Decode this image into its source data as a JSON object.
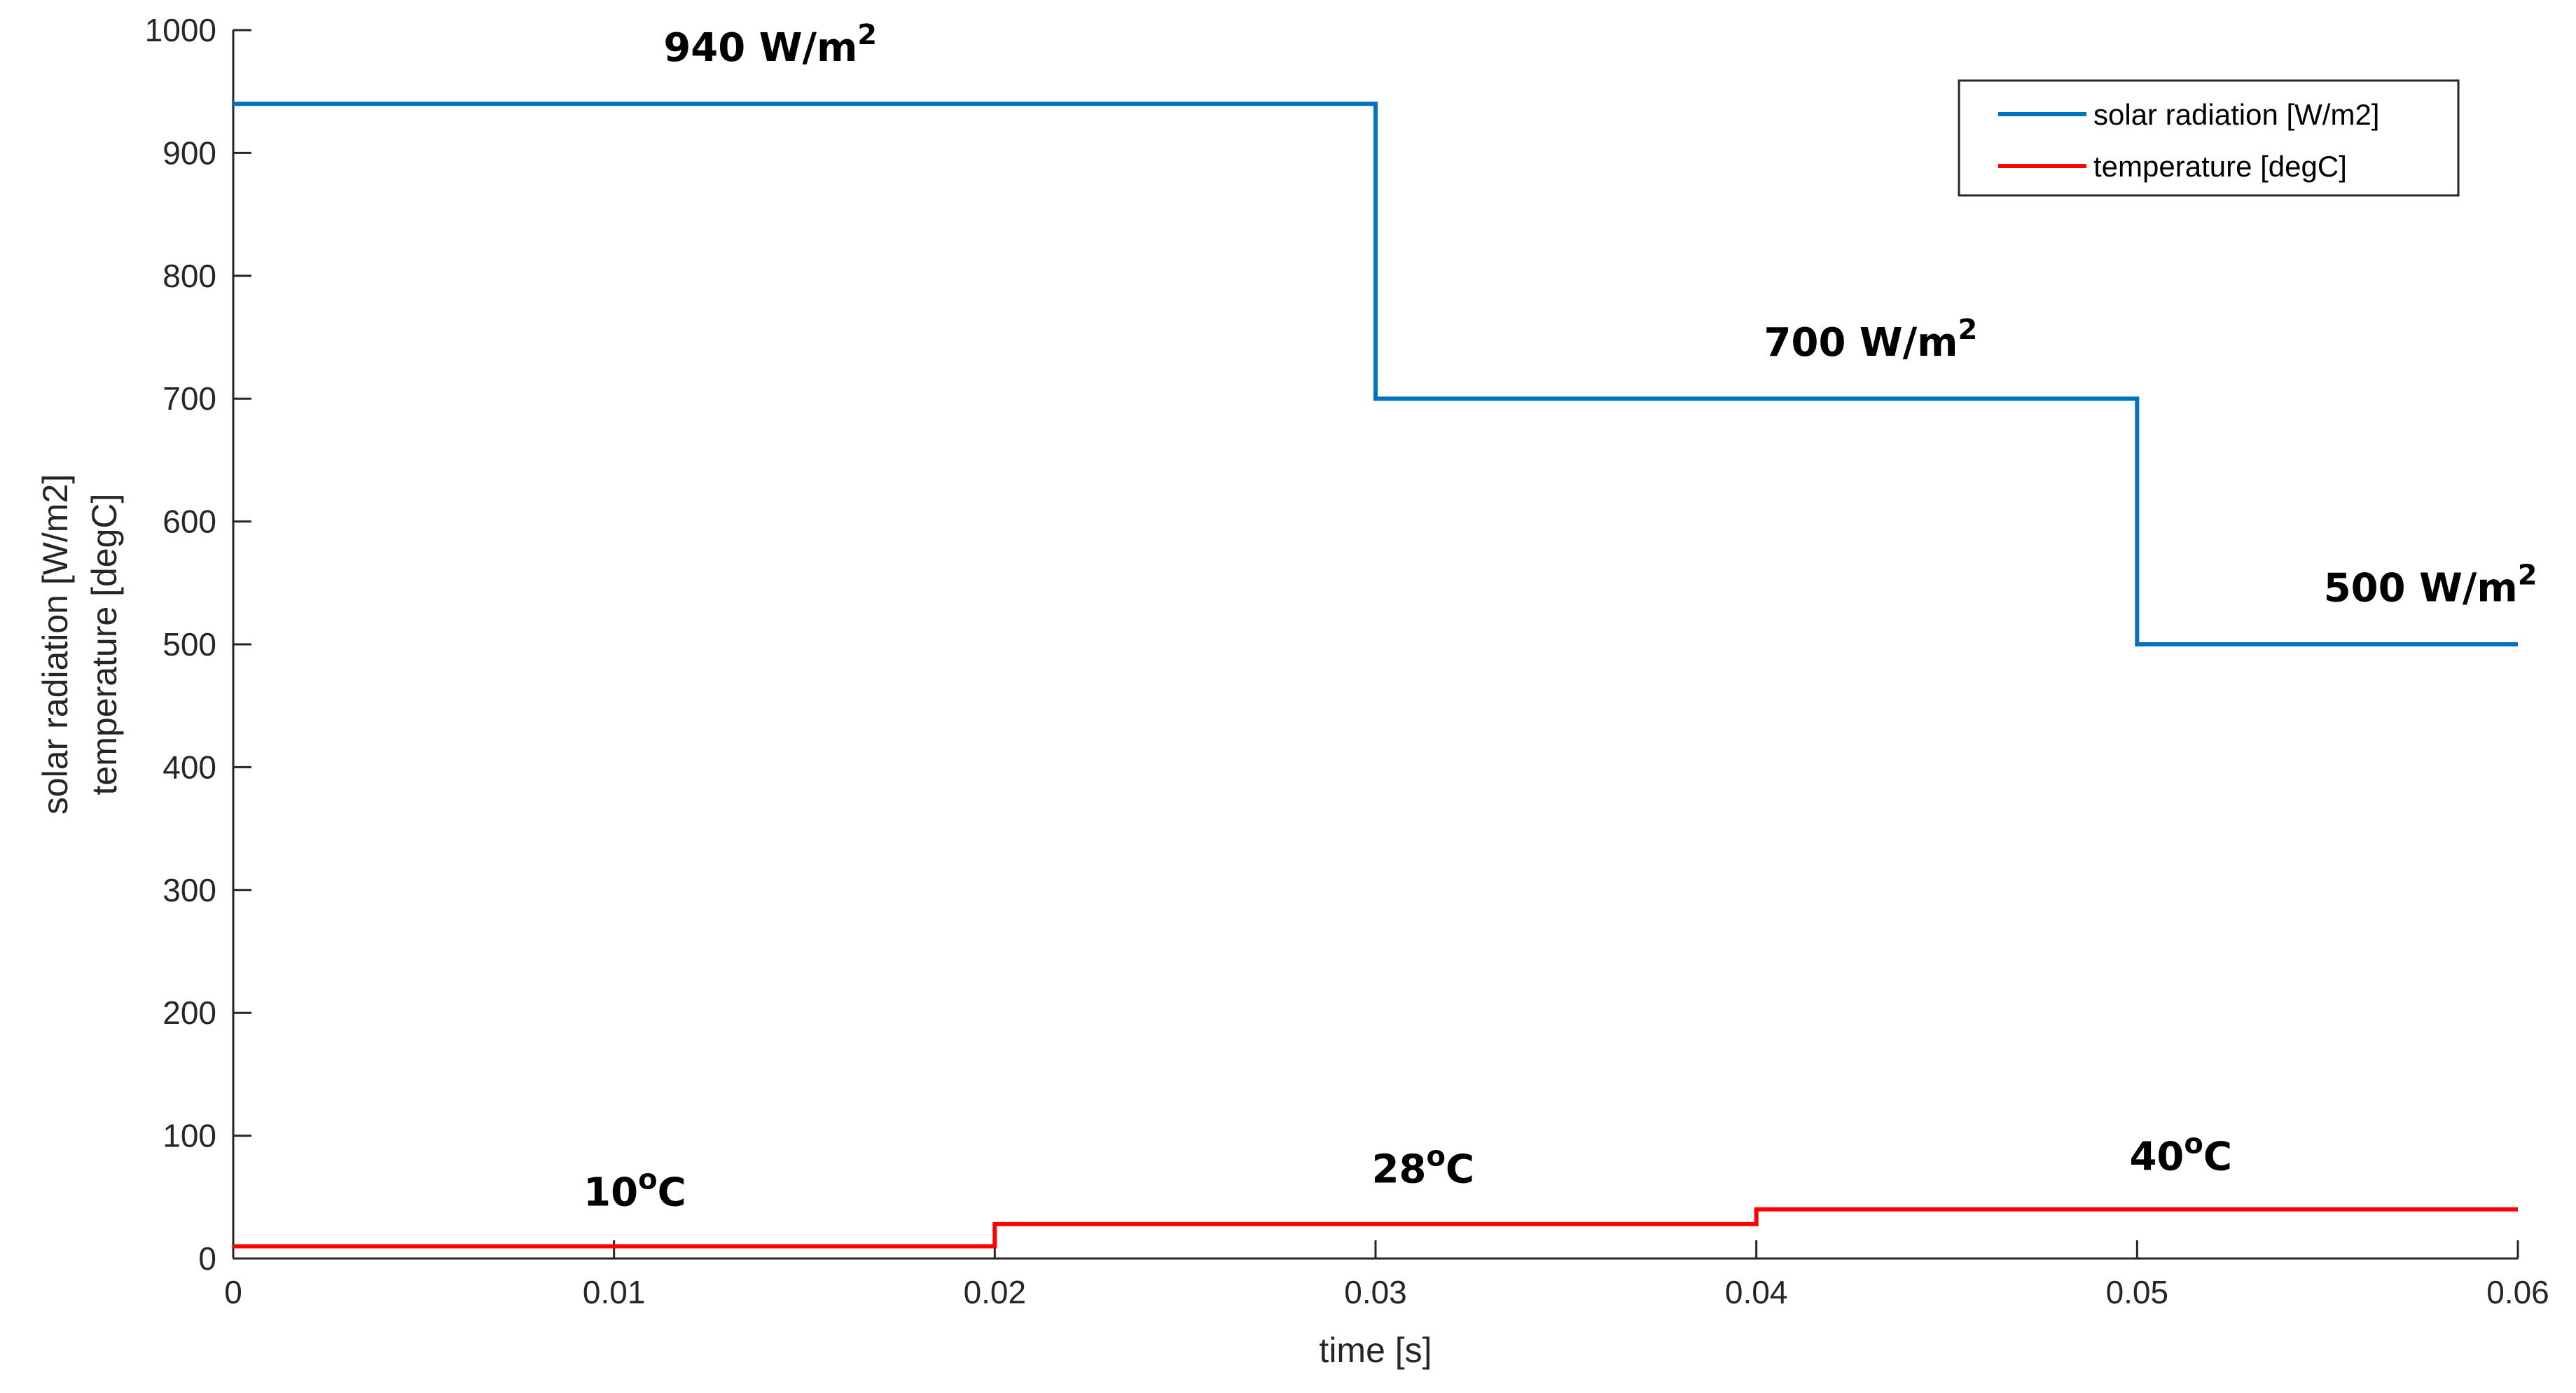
{
  "chart_data": {
    "type": "line",
    "xlabel": "time [s]",
    "ylabel_lines": [
      "solar radiation [W/m2]",
      "temperature [degC]"
    ],
    "xlim": [
      0,
      0.06
    ],
    "ylim": [
      0,
      1000
    ],
    "x_ticks": [
      0,
      0.01,
      0.02,
      0.03,
      0.04,
      0.05,
      0.06
    ],
    "x_tick_labels": [
      "0",
      "0.01",
      "0.02",
      "0.03",
      "0.04",
      "0.05",
      "0.06"
    ],
    "y_ticks": [
      0,
      100,
      200,
      300,
      400,
      500,
      600,
      700,
      800,
      900,
      1000
    ],
    "y_tick_labels": [
      "0",
      "100",
      "200",
      "300",
      "400",
      "500",
      "600",
      "700",
      "800",
      "900",
      "1000"
    ],
    "grid": false,
    "legend_position": "top-right",
    "series": [
      {
        "name": "solar radiation [W/m2]",
        "color": "#0072BD",
        "step": true,
        "x": [
          0,
          0.03,
          0.03,
          0.05,
          0.05,
          0.06
        ],
        "y": [
          940,
          940,
          700,
          700,
          500,
          500
        ]
      },
      {
        "name": "temperature [degC]",
        "color": "#FF0000",
        "step": true,
        "x": [
          0,
          0.02,
          0.02,
          0.04,
          0.04,
          0.06
        ],
        "y": [
          10,
          10,
          28,
          28,
          40,
          40
        ]
      }
    ],
    "annotations": [
      {
        "main": "940 W/m",
        "sup": "2",
        "x": 0.0113,
        "y": 975
      },
      {
        "main": "700 W/m",
        "sup": "2",
        "x": 0.0402,
        "y": 735
      },
      {
        "main": "500 W/m",
        "sup": "2",
        "x": 0.0549,
        "y": 535
      },
      {
        "main": "10",
        "sup": "o",
        "tail": "C",
        "x": 0.0092,
        "y": 43
      },
      {
        "main": "28",
        "sup": "o",
        "tail": "C",
        "x": 0.0299,
        "y": 62
      },
      {
        "main": "40",
        "sup": "o",
        "tail": "C",
        "x": 0.0498,
        "y": 72
      }
    ]
  }
}
